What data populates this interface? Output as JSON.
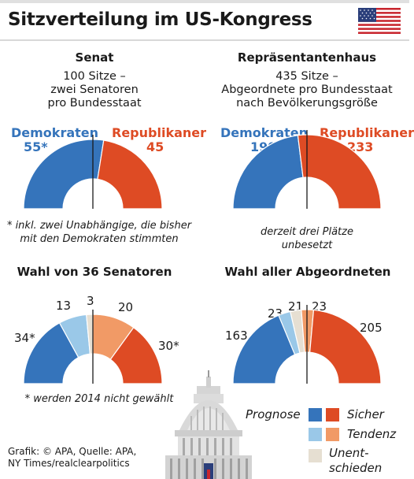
{
  "title": "Sitzverteilung im US-Kongress",
  "colors": {
    "dem_sure": "#3574bb",
    "rep_sure": "#de4b24",
    "dem_trend": "#9ac8e8",
    "rep_trend": "#f19a66",
    "undecided": "#e6dfd2"
  },
  "senate": {
    "heading": "Senat",
    "sub1": "100 Sitze –",
    "sub2": "zwei Senatoren",
    "sub3": "pro Bundesstaat",
    "dem_label": "Demokraten",
    "dem_value": "55*",
    "rep_label": "Republikaner",
    "rep_value": "45",
    "note1": "* inkl. zwei Unabhängige, die bisher",
    "note2": "mit den Demokraten stimmten"
  },
  "house": {
    "heading": "Repräsentantenhaus",
    "sub1": "435 Sitze –",
    "sub2": "Abgeordnete pro Bundesstaat",
    "sub3": "nach Bevölkerungsgröße",
    "dem_label": "Demokraten",
    "dem_value": "199",
    "rep_label": "Republikaner",
    "rep_value": "233",
    "note1": "derzeit drei Plätze",
    "note2": "unbesetzt"
  },
  "senate_election": {
    "heading": "Wahl von 36 Senatoren",
    "dem_sure": "34*",
    "dem_trend": "13",
    "undecided": "3",
    "rep_trend": "20",
    "rep_sure": "30*",
    "note": "* werden 2014 nicht gewählt"
  },
  "house_election": {
    "heading": "Wahl aller Abgeordneten",
    "dem_sure": "163",
    "dem_trend": "23",
    "undecided": "21",
    "rep_trend": "23",
    "rep_sure": "205"
  },
  "legend": {
    "prognose": "Prognose",
    "sicher": "Sicher",
    "tendenz": "Tendenz",
    "unent1": "Unent-",
    "unent2": "schieden"
  },
  "source": {
    "line1": "Grafik: © APA, Quelle: APA,",
    "line2": "NY Times/realclearpolitics"
  },
  "chart_data": [
    {
      "type": "pie",
      "title": "Senat",
      "categories": [
        "Demokraten",
        "Republikaner"
      ],
      "values": [
        55,
        45
      ]
    },
    {
      "type": "pie",
      "title": "Repräsentantenhaus",
      "categories": [
        "Demokraten",
        "Republikaner"
      ],
      "values": [
        199,
        233
      ]
    },
    {
      "type": "pie",
      "title": "Wahl von 36 Senatoren",
      "categories": [
        "Sicher",
        "Tendenz",
        "Unentschieden",
        "Tendenz",
        "Sicher"
      ],
      "values": [
        34,
        13,
        3,
        20,
        30
      ]
    },
    {
      "type": "pie",
      "title": "Wahl aller Abgeordneten",
      "categories": [
        "Sicher",
        "Tendenz",
        "Unentschieden",
        "Tendenz",
        "Sicher"
      ],
      "values": [
        163,
        23,
        21,
        23,
        205
      ]
    }
  ]
}
